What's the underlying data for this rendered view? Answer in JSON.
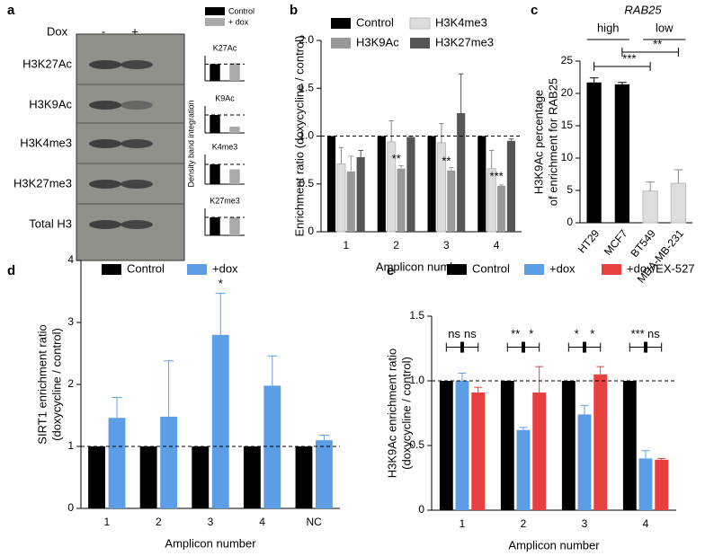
{
  "panel_labels": [
    "a",
    "b",
    "c",
    "d",
    "e"
  ],
  "blot": {
    "treatment": "Dox",
    "lanes": [
      "-",
      "+"
    ],
    "rows": [
      "H3K27Ac",
      "H3K9Ac",
      "H3K4me3",
      "H3K27me3",
      "Total H3"
    ],
    "legend": [
      {
        "name": "Control",
        "color": "#000000"
      },
      {
        "name": "+ dox",
        "color": "#aaaaaa"
      }
    ],
    "ylabel": "Density band integration"
  },
  "chart_data": [
    {
      "type": "bar",
      "ylabel": "Enrichment ratio (doxycycline / control)",
      "xlabel": "Amplicon number",
      "categories": [
        "1",
        "2",
        "3",
        "4"
      ],
      "series": [
        {
          "name": "Control",
          "color": "#000000",
          "values": [
            1,
            1,
            1,
            1
          ]
        },
        {
          "name": "H3K4me3",
          "color": "#dddddd",
          "values": [
            0.71,
            0.94,
            0.93,
            0.66
          ],
          "errors": [
            0.17,
            0.22,
            0.2,
            0.19
          ]
        },
        {
          "name": "H3K9Ac",
          "color": "#999999",
          "values": [
            0.63,
            0.66,
            0.64,
            0.48
          ],
          "errors": [
            0.16,
            0.03,
            0.03,
            0.01
          ]
        },
        {
          "name": "H3K27me3",
          "color": "#555555",
          "values": [
            0.78,
            0.99,
            1.24,
            0.95
          ],
          "errors": [
            0.07,
            0.01,
            0.41,
            0.02
          ]
        }
      ],
      "significance": [
        null,
        "**",
        "**",
        "***"
      ],
      "hline": 1,
      "ylim": [
        0,
        2
      ],
      "yticks": [
        0,
        0.5,
        {
          "value": 1,
          "label": "1.0"
        },
        1.5,
        {
          "value": 2,
          "label": "2.0"
        }
      ]
    },
    {
      "type": "bar",
      "title": "RAB25",
      "ylabel": [
        "H3K9Ac percentage",
        "of enrichment for RAB25"
      ],
      "categories": [
        "HT29",
        "MCF7",
        "BT549",
        "MDA-MB-231"
      ],
      "values": [
        21.7,
        21.4,
        4.9,
        6.1
      ],
      "errors": [
        0.7,
        0.3,
        1.4,
        2.1
      ],
      "colors": [
        "#000000",
        "#000000",
        "#dddddd",
        "#dddddd"
      ],
      "groups": [
        "high",
        "low"
      ],
      "comparisons": [
        "***",
        "**"
      ],
      "ylim": [
        0,
        25
      ],
      "yticks": [
        0,
        5,
        10,
        15,
        20,
        25
      ]
    },
    {
      "type": "bar",
      "ylabel": [
        "SIRT1 enrichment ratio",
        "(doxycycline / control)"
      ],
      "xlabel": "Amplicon number",
      "categories": [
        "1",
        "2",
        "3",
        "4",
        "NC"
      ],
      "series": [
        {
          "name": "Control",
          "color": "#000000",
          "values": [
            1,
            1,
            1,
            1,
            1
          ]
        },
        {
          "name": "+dox",
          "color": "#5b9ee6",
          "values": [
            1.46,
            1.48,
            2.8,
            1.98,
            1.1
          ],
          "errors": [
            0.33,
            0.9,
            0.67,
            0.48,
            0.08
          ]
        }
      ],
      "significance": [
        null,
        null,
        "*",
        null,
        null
      ],
      "hline": 1,
      "ylim": [
        0,
        4
      ],
      "yticks": [
        0,
        1,
        2,
        3,
        4
      ]
    },
    {
      "type": "bar",
      "ylabel": [
        "H3K9Ac enrichment ratio",
        "(doxycycline / control)"
      ],
      "xlabel": "Amplicon number",
      "categories": [
        "1",
        "2",
        "3",
        "4"
      ],
      "series": [
        {
          "name": "Control",
          "color": "#000000",
          "values": [
            1,
            1,
            1,
            1
          ]
        },
        {
          "name": "+dox",
          "color": "#5b9ee6",
          "values": [
            1.0,
            0.62,
            0.74,
            0.4
          ],
          "errors": [
            0.06,
            0.02,
            0.07,
            0.06
          ]
        },
        {
          "name": "+dox/EX-527",
          "color": "#e8403f",
          "values": [
            0.91,
            0.91,
            1.05,
            0.39
          ],
          "errors": [
            0.04,
            0.2,
            0.06,
            0.01
          ]
        }
      ],
      "pair_significance": [
        [
          "ns",
          "ns"
        ],
        [
          "**",
          "*"
        ],
        [
          "*",
          "*"
        ],
        [
          "***",
          "ns"
        ]
      ],
      "hline": 1,
      "ylim": [
        0,
        1.5
      ],
      "yticks": [
        0,
        0.5,
        {
          "value": 1,
          "label": "1.0"
        },
        1.5
      ]
    },
    {
      "type": "bar",
      "title": "K27Ac",
      "categories": [
        null,
        null
      ],
      "values": [
        1,
        1.05
      ],
      "colors": [
        "#000000",
        "#aaaaaa"
      ],
      "hline": 1,
      "ylim": [
        0,
        1.5
      ]
    },
    {
      "type": "bar",
      "title": "K9Ac",
      "categories": [
        null,
        null
      ],
      "values": [
        1,
        0.35
      ],
      "colors": [
        "#000000",
        "#aaaaaa"
      ],
      "hline": 1,
      "ylim": [
        0,
        1.5
      ]
    },
    {
      "type": "bar",
      "title": "K4me3",
      "categories": [
        null,
        null
      ],
      "values": [
        1,
        0.75
      ],
      "colors": [
        "#000000",
        "#aaaaaa"
      ],
      "hline": 1,
      "ylim": [
        0,
        1.5
      ]
    },
    {
      "type": "bar",
      "title": "K27me3",
      "categories": [
        null,
        null
      ],
      "values": [
        1,
        1.0
      ],
      "colors": [
        "#000000",
        "#aaaaaa"
      ],
      "hline": 1,
      "ylim": [
        0,
        1.5
      ]
    }
  ]
}
